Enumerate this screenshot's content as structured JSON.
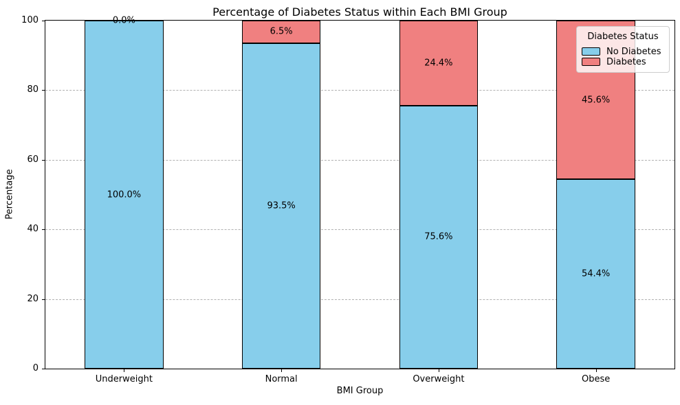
{
  "chart_data": {
    "type": "bar",
    "stacked": true,
    "title": "Percentage of Diabetes Status within Each BMI Group",
    "xlabel": "BMI Group",
    "ylabel": "Percentage",
    "categories": [
      "Underweight",
      "Normal",
      "Overweight",
      "Obese"
    ],
    "series": [
      {
        "name": "No Diabetes",
        "color": "#87CEEB",
        "values": [
          100.0,
          93.5,
          75.6,
          54.4
        ],
        "labels": [
          "100.0%",
          "93.5%",
          "75.6%",
          "54.4%"
        ]
      },
      {
        "name": "Diabetes",
        "color": "#F08080",
        "values": [
          0.0,
          6.5,
          24.4,
          45.6
        ],
        "labels": [
          "0.0%",
          "6.5%",
          "24.4%",
          "45.6%"
        ]
      }
    ],
    "ylim": [
      0,
      100
    ],
    "yticks": [
      0,
      20,
      40,
      60,
      80,
      100
    ],
    "grid": "horizontal-dashed",
    "bar_edge_color": "#000000",
    "legend": {
      "title": "Diabetes Status",
      "position": "upper-right"
    }
  }
}
